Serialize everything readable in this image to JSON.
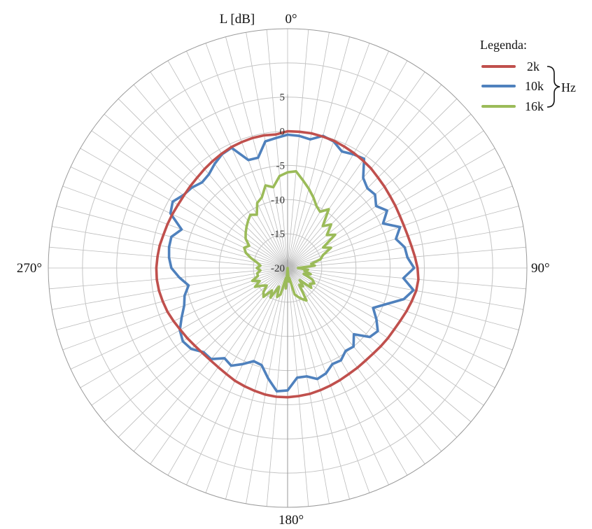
{
  "chart_data": {
    "type": "line",
    "subtype": "polar",
    "ylabel": "L [dB]",
    "r_range": [
      -20,
      5
    ],
    "r_ticks": [
      5,
      0,
      -5,
      -10,
      -15,
      -20
    ],
    "r_tick_labels": [
      "5",
      "0",
      "-5",
      "-10",
      "-15",
      "-20"
    ],
    "angle_step_deg": 5,
    "angle_labels": [
      "0°",
      "90°",
      "180°",
      "270°"
    ],
    "legend": {
      "title": "Legenda:",
      "unit": "Hz",
      "placement": "top-right"
    },
    "series": [
      {
        "name": "2k",
        "color": "#c0504d",
        "values": [
          0,
          0,
          0,
          -0.1,
          -0.2,
          -0.4,
          -0.6,
          -0.8,
          -1,
          -1.3,
          -1.5,
          -1.7,
          -1.8,
          -1.9,
          -1.9,
          -1.8,
          -1.6,
          -1.3,
          -1,
          -0.8,
          -0.9,
          -1.2,
          -1.5,
          -1.8,
          -2,
          -2.1,
          -2.2,
          -2.3,
          -2.3,
          -2.2,
          -2.1,
          -1.9,
          -1.7,
          -1.5,
          -1.3,
          -1.2,
          -1.1,
          -1.1,
          -1.2,
          -1.4,
          -1.6,
          -1.8,
          -2.1,
          -2.3,
          -2.4,
          -2.4,
          -2.3,
          -2.1,
          -1.9,
          -1.6,
          -1.3,
          -1.1,
          -0.9,
          -0.8,
          -0.8,
          -0.9,
          -1,
          -1.2,
          -1.3,
          -1.4,
          -1.5,
          -1.5,
          -1.4,
          -1.3,
          -1.1,
          -0.9,
          -0.7,
          -0.5,
          -0.4,
          -0.3,
          -0.3,
          -0.4
        ]
      },
      {
        "name": "10k",
        "color": "#4f81bd",
        "values": [
          -0.5,
          -0.6,
          -0.9,
          0,
          -0.3,
          -1.2,
          -0.8,
          -0.5,
          -2.8,
          -3.5,
          -3.3,
          -4.2,
          -3.2,
          -4.6,
          -2.5,
          -3.6,
          -2.6,
          -2.4,
          -1.5,
          -3,
          -1.3,
          -2.4,
          -4.6,
          -6.2,
          -5,
          -3.9,
          -4.3,
          -6.3,
          -5,
          -5.2,
          -4.4,
          -4.5,
          -3.6,
          -3.2,
          -3.9,
          -3.9,
          -2.1,
          -1.9,
          -3.6,
          -5.3,
          -5.5,
          -4.5,
          -3.5,
          -3.9,
          -2.6,
          -2.6,
          -1.6,
          -1.3,
          -1.8,
          -2.9,
          -3.9,
          -4.4,
          -5.3,
          -4.1,
          -3,
          -2.6,
          -2.4,
          -2.4,
          -3.5,
          -1.1,
          -0.6,
          -1.4,
          -1.7,
          -2.3,
          -2.1,
          -1.4,
          -0.8,
          -0.6,
          -3.2,
          -3.3,
          -1.2,
          -0.9
        ]
      },
      {
        "name": "16k",
        "color": "#9bbb59",
        "values": [
          -6,
          -5.8,
          -7,
          -8,
          -9,
          -10,
          -10.5,
          -9.5,
          -12,
          -11,
          -12.5,
          -11.5,
          -14,
          -13,
          -14.5,
          -15,
          -16.5,
          -16,
          -18.5,
          -17,
          -17.5,
          -16.5,
          -17.5,
          -16,
          -15.5,
          -16,
          -15.5,
          -17.5,
          -16.5,
          -17,
          -14.5,
          -15,
          -15.5,
          -16,
          -18.5,
          -18,
          -20,
          -17,
          -18.5,
          -16,
          -15.5,
          -17,
          -15,
          -16,
          -14.5,
          -15,
          -16,
          -15.5,
          -14.5,
          -15.5,
          -14.5,
          -15.5,
          -15.5,
          -16,
          -15.5,
          -16,
          -15.5,
          -14.5,
          -13.5,
          -13,
          -13.5,
          -12.5,
          -12,
          -11.5,
          -11,
          -10.5,
          -11,
          -9.5,
          -9,
          -7.5,
          -8,
          -6.5
        ]
      }
    ]
  }
}
